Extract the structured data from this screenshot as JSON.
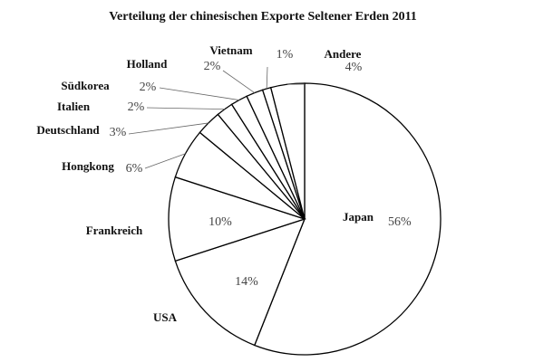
{
  "chart_data": {
    "type": "pie",
    "title": "Verteilung der chinesischen Exporte Seltener Erden 2011",
    "categories": [
      "Japan",
      "USA",
      "Frankreich",
      "Hongkong",
      "Deutschland",
      "Italien",
      "Südkorea",
      "Holland",
      "Vietnam",
      "Andere"
    ],
    "values": [
      56,
      14,
      10,
      6,
      3,
      2,
      2,
      2,
      1,
      4
    ],
    "value_labels": [
      "56%",
      "14%",
      "10%",
      "6%",
      "3%",
      "2%",
      "2%",
      "2%",
      "1%",
      "4%"
    ],
    "color": "#ffffff"
  }
}
